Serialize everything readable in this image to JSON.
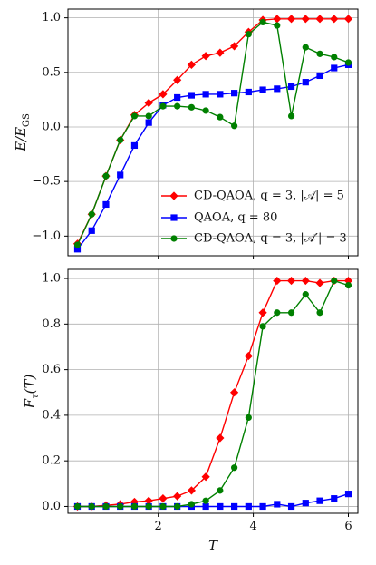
{
  "chart_data": [
    {
      "type": "line",
      "xlabel": "",
      "ylabel": "E/E_GS",
      "xlim": [
        0.1,
        6.2
      ],
      "ylim": [
        -1.18,
        1.08
      ],
      "xticks": [
        "2",
        "4",
        "6"
      ],
      "xtick_values": [
        2,
        4,
        6
      ],
      "yticks": [
        "−1.0",
        "−0.5",
        "0.0",
        "0.5",
        "1.0"
      ],
      "ytick_values": [
        -1.0,
        -0.5,
        0.0,
        0.5,
        1.0
      ],
      "grid": true,
      "legend": "lower-right",
      "x": [
        0.3,
        0.6,
        0.9,
        1.2,
        1.5,
        1.8,
        2.1,
        2.4,
        2.7,
        3.0,
        3.3,
        3.6,
        3.9,
        4.2,
        4.5,
        4.8,
        5.1,
        5.4,
        5.7,
        6.0
      ],
      "series": [
        {
          "name": "CD-QAOA, q = 3, |𝒜| = 5",
          "color": "#ff0000",
          "marker": "diamond",
          "values": [
            -1.07,
            -0.8,
            -0.45,
            -0.12,
            0.11,
            0.22,
            0.3,
            0.43,
            0.57,
            0.65,
            0.68,
            0.74,
            0.87,
            0.98,
            0.99,
            0.99,
            0.99,
            0.99,
            0.99,
            0.99
          ]
        },
        {
          "name": "QAOA, q = 80",
          "color": "#0000ff",
          "marker": "square",
          "values": [
            -1.12,
            -0.95,
            -0.71,
            -0.44,
            -0.17,
            0.04,
            0.2,
            0.27,
            0.29,
            0.3,
            0.3,
            0.31,
            0.32,
            0.34,
            0.35,
            0.37,
            0.41,
            0.47,
            0.54,
            0.57
          ]
        },
        {
          "name": "CD-QAOA, q = 3, |𝒜′| = 3",
          "color": "#008000",
          "marker": "circle",
          "values": [
            -1.08,
            -0.8,
            -0.45,
            -0.12,
            0.1,
            0.1,
            0.19,
            0.19,
            0.18,
            0.15,
            0.09,
            0.01,
            0.85,
            0.96,
            0.93,
            0.1,
            0.73,
            0.67,
            0.64,
            0.59
          ]
        }
      ]
    },
    {
      "type": "line",
      "xlabel": "T",
      "ylabel": "F_τ(T)",
      "xlim": [
        0.1,
        6.2
      ],
      "ylim": [
        -0.03,
        1.04
      ],
      "xticks": [
        "2",
        "4",
        "6"
      ],
      "xtick_values": [
        2,
        4,
        6
      ],
      "yticks": [
        "0.0",
        "0.2",
        "0.4",
        "0.6",
        "0.8",
        "1.0"
      ],
      "ytick_values": [
        0.0,
        0.2,
        0.4,
        0.6,
        0.8,
        1.0
      ],
      "grid": true,
      "x": [
        0.3,
        0.6,
        0.9,
        1.2,
        1.5,
        1.8,
        2.1,
        2.4,
        2.7,
        3.0,
        3.3,
        3.6,
        3.9,
        4.2,
        4.5,
        4.8,
        5.1,
        5.4,
        5.7,
        6.0
      ],
      "series": [
        {
          "name": "CD-QAOA, q = 3, |𝒜| = 5",
          "color": "#ff0000",
          "marker": "diamond",
          "values": [
            0.0,
            0.0,
            0.005,
            0.01,
            0.02,
            0.025,
            0.035,
            0.045,
            0.07,
            0.13,
            0.3,
            0.5,
            0.66,
            0.85,
            0.99,
            0.99,
            0.99,
            0.98,
            0.99,
            0.99
          ]
        },
        {
          "name": "QAOA, q = 80",
          "color": "#0000ff",
          "marker": "square",
          "values": [
            0.0,
            0.0,
            0.0,
            0.0,
            0.0,
            0.0,
            0.0,
            0.0,
            0.0,
            0.0,
            0.0,
            0.0,
            0.0,
            0.0,
            0.01,
            0.0,
            0.015,
            0.025,
            0.035,
            0.055
          ]
        },
        {
          "name": "CD-QAOA, q = 3, |𝒜′| = 3",
          "color": "#008000",
          "marker": "circle",
          "values": [
            0.0,
            0.0,
            0.0,
            0.0,
            0.0,
            0.0,
            0.0,
            0.0,
            0.01,
            0.025,
            0.07,
            0.17,
            0.39,
            0.79,
            0.85,
            0.85,
            0.93,
            0.85,
            0.99,
            0.97
          ]
        }
      ]
    }
  ]
}
